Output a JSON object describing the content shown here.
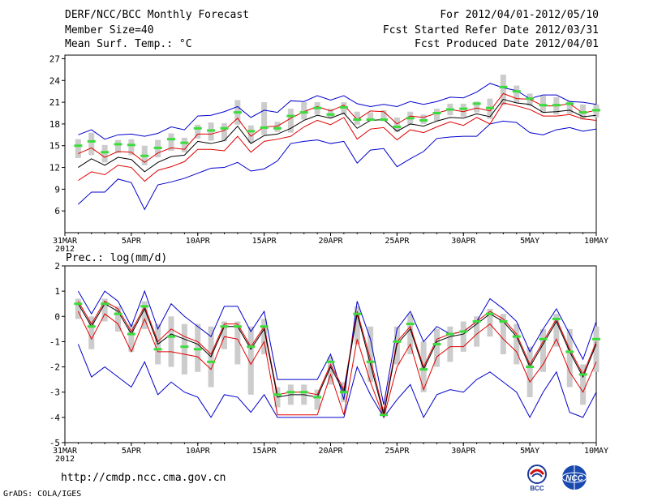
{
  "header": {
    "title": "DERF/NCC/BCC Monthly Forecast",
    "member_size": "Member Size=40",
    "variable": "Mean Surf. Temp.: °C",
    "period": "For 2012/04/01-2012/05/10",
    "fcst_started": "Fcst Started Refer Date 2012/03/31",
    "fcst_produced": "Fcst Produced Date 2012/04/01"
  },
  "footer": {
    "url": "http://cmdp.ncc.cma.gov.cn",
    "grads": "GrADS: COLA/IGES",
    "logo_bcc": "BCC",
    "logo_ncc": "NCC"
  },
  "colors": {
    "envelope": "#0000cc",
    "spread": "#e00000",
    "mean": "#000000",
    "observed": "#3cdc3c",
    "box": "#cccccc"
  },
  "chart_data": [
    {
      "type": "line",
      "title": "Mean Surf. Temp.: °C",
      "x_tick_labels": [
        "31MAR",
        "5APR",
        "10APR",
        "15APR",
        "20APR",
        "25APR",
        "30APR",
        "5MAY",
        "10MAY"
      ],
      "x_tick_days": [
        0,
        5,
        10,
        15,
        20,
        25,
        30,
        35,
        40
      ],
      "x_year_label": "2012",
      "ylim": [
        3,
        27.5
      ],
      "y_ticks": [
        6,
        9,
        12,
        15,
        18,
        21,
        24,
        27
      ],
      "days": [
        1,
        2,
        3,
        4,
        5,
        6,
        7,
        8,
        9,
        10,
        11,
        12,
        13,
        14,
        15,
        16,
        17,
        18,
        19,
        20,
        21,
        22,
        23,
        24,
        25,
        26,
        27,
        28,
        29,
        30,
        31,
        32,
        33,
        34,
        35,
        36,
        37,
        38,
        39,
        40
      ],
      "series": [
        {
          "name": "max",
          "values": [
            16.5,
            17.2,
            15.9,
            16.5,
            16.6,
            16.3,
            16.7,
            17.6,
            17.2,
            19.1,
            19.2,
            19.7,
            20.4,
            18.9,
            19.9,
            19.6,
            21.2,
            21.1,
            21.9,
            21.3,
            21.9,
            20.8,
            20.4,
            20.7,
            20.4,
            21.1,
            20.7,
            21.1,
            21.7,
            21.6,
            22.4,
            23.6,
            23.0,
            22.6,
            21.5,
            22.0,
            22.0,
            21.1,
            21.0,
            20.7
          ]
        },
        {
          "name": "upper",
          "values": [
            13.9,
            14.7,
            13.4,
            14.2,
            14.1,
            12.7,
            14.0,
            14.7,
            14.5,
            16.6,
            16.6,
            17.1,
            18.8,
            16.3,
            17.6,
            17.7,
            18.8,
            19.7,
            20.4,
            19.8,
            20.6,
            18.6,
            19.8,
            19.7,
            18.0,
            19.1,
            18.9,
            19.5,
            20.0,
            19.7,
            20.2,
            19.8,
            22.2,
            21.5,
            21.4,
            20.5,
            20.5,
            20.8,
            19.5,
            19.9
          ]
        },
        {
          "name": "mean",
          "values": [
            12.0,
            13.2,
            12.3,
            13.4,
            13.1,
            11.4,
            12.7,
            13.5,
            13.7,
            15.6,
            15.3,
            15.7,
            17.7,
            15.3,
            16.4,
            16.6,
            17.4,
            18.5,
            19.2,
            18.8,
            19.5,
            17.4,
            18.5,
            18.6,
            17.0,
            18.0,
            17.7,
            18.4,
            18.9,
            18.8,
            19.4,
            19.0,
            21.4,
            20.9,
            20.7,
            19.6,
            19.7,
            19.9,
            19.0,
            19.2
          ]
        },
        {
          "name": "lower",
          "values": [
            10.2,
            11.4,
            11.0,
            12.3,
            12.0,
            10.1,
            11.6,
            12.1,
            12.8,
            14.5,
            14.5,
            14.3,
            16.3,
            14.1,
            15.6,
            15.9,
            16.3,
            17.6,
            18.5,
            17.9,
            18.9,
            15.9,
            17.3,
            17.5,
            15.8,
            17.2,
            16.8,
            17.6,
            18.3,
            17.8,
            18.9,
            18.0,
            20.9,
            20.5,
            20.0,
            19.1,
            19.1,
            19.3,
            18.7,
            18.5
          ]
        },
        {
          "name": "min",
          "values": [
            6.9,
            8.6,
            8.6,
            10.4,
            9.9,
            6.2,
            9.6,
            10.0,
            10.5,
            11.2,
            11.9,
            12.0,
            12.7,
            11.5,
            11.8,
            12.9,
            15.3,
            15.6,
            15.8,
            15.3,
            15.6,
            12.6,
            14.4,
            14.6,
            12.1,
            13.2,
            14.2,
            16.0,
            16.2,
            16.3,
            16.3,
            18.0,
            18.4,
            18.2,
            16.8,
            16.5,
            17.2,
            17.5,
            17.0,
            17.3
          ]
        },
        {
          "name": "observed",
          "values": [
            15.0,
            15.6,
            14.1,
            15.2,
            15.1,
            13.6,
            14.7,
            15.9,
            15.4,
            17.4,
            17.1,
            17.4,
            19.6,
            17.0,
            17.5,
            17.4,
            19.1,
            19.6,
            20.2,
            19.3,
            20.3,
            18.6,
            18.6,
            18.6,
            17.6,
            18.8,
            18.5,
            19.5,
            20.0,
            20.1,
            20.8,
            20.2,
            23.1,
            22.5,
            21.5,
            20.6,
            20.6,
            20.8,
            19.6,
            19.9
          ]
        },
        {
          "name": "box_top",
          "values": [
            15.9,
            16.8,
            15.1,
            15.8,
            15.9,
            15.0,
            15.8,
            16.7,
            16.1,
            17.9,
            18.2,
            18.1,
            21.3,
            17.8,
            21.0,
            18.3,
            20.1,
            21.0,
            21.0,
            20.1,
            21.0,
            19.7,
            19.6,
            19.9,
            18.9,
            19.7,
            19.3,
            20.1,
            20.8,
            20.8,
            21.1,
            21.5,
            24.8,
            23.3,
            22.2,
            21.9,
            21.7,
            21.2,
            20.7,
            20.7
          ]
        },
        {
          "name": "box_bottom",
          "values": [
            13.3,
            13.7,
            12.7,
            14.0,
            13.7,
            12.3,
            13.4,
            14.3,
            14.1,
            16.0,
            15.7,
            15.6,
            17.9,
            15.4,
            16.5,
            16.9,
            16.8,
            18.6,
            19.3,
            18.8,
            19.3,
            17.9,
            18.4,
            18.4,
            16.9,
            17.9,
            18.0,
            18.4,
            19.2,
            19.0,
            19.6,
            18.7,
            20.6,
            20.9,
            20.5,
            19.5,
            19.3,
            19.4,
            18.6,
            18.9
          ]
        }
      ]
    },
    {
      "type": "line",
      "title": "Prec.: log(mm/d)",
      "x_tick_labels": [
        "31MAR",
        "5APR",
        "10APR",
        "15APR",
        "20APR",
        "25APR",
        "30APR",
        "5MAY",
        "10MAY"
      ],
      "x_tick_days": [
        0,
        5,
        10,
        15,
        20,
        25,
        30,
        35,
        40
      ],
      "x_year_label": "2012",
      "ylim": [
        -5,
        2
      ],
      "y_ticks": [
        -5,
        -4,
        -3,
        -2,
        -1,
        0,
        1,
        2
      ],
      "days": [
        1,
        2,
        3,
        4,
        5,
        6,
        7,
        8,
        9,
        10,
        11,
        12,
        13,
        14,
        15,
        16,
        17,
        18,
        19,
        20,
        21,
        22,
        23,
        24,
        25,
        26,
        27,
        28,
        29,
        30,
        31,
        32,
        33,
        34,
        35,
        36,
        37,
        38,
        39,
        40
      ],
      "series": [
        {
          "name": "max",
          "values": [
            1.0,
            0.1,
            1.0,
            0.6,
            -0.4,
            1.0,
            -0.5,
            0.5,
            0.0,
            -0.4,
            -0.8,
            0.4,
            0.4,
            -0.6,
            0.2,
            -2.5,
            -2.5,
            -2.5,
            -2.5,
            -1.5,
            -3.3,
            0.6,
            -0.9,
            -3.5,
            -0.5,
            0.2,
            -1.0,
            -0.4,
            -0.7,
            -0.6,
            -0.2,
            0.7,
            0.3,
            -0.2,
            -1.4,
            -0.5,
            0.3,
            -0.7,
            -1.7,
            -0.2
          ]
        },
        {
          "name": "upper",
          "values": [
            0.6,
            -0.3,
            0.6,
            0.3,
            -0.6,
            0.4,
            -1.0,
            -0.5,
            -0.8,
            -1.0,
            -1.5,
            -0.3,
            -0.3,
            -1.2,
            -0.4,
            -3.1,
            -3.0,
            -3.0,
            -3.1,
            -1.9,
            -2.9,
            0.2,
            -1.7,
            -3.8,
            -1.0,
            -0.4,
            -2.0,
            -0.9,
            -0.7,
            -0.6,
            -0.2,
            0.2,
            -0.1,
            -0.7,
            -1.9,
            -1.0,
            -0.1,
            -1.3,
            -2.3,
            -1.0
          ]
        },
        {
          "name": "mean",
          "values": [
            0.5,
            -0.4,
            0.5,
            0.2,
            -0.7,
            0.3,
            -1.1,
            -0.7,
            -0.9,
            -1.1,
            -1.6,
            -0.4,
            -0.4,
            -1.3,
            -0.5,
            -3.2,
            -3.1,
            -3.1,
            -3.2,
            -2.0,
            -3.0,
            0.1,
            -1.9,
            -3.9,
            -1.1,
            -0.5,
            -2.1,
            -1.0,
            -0.8,
            -0.7,
            -0.3,
            0.1,
            -0.2,
            -0.8,
            -2.0,
            -1.1,
            -0.2,
            -1.4,
            -2.4,
            -1.1
          ]
        },
        {
          "name": "lower",
          "values": [
            0.2,
            -0.9,
            0.1,
            -0.3,
            -1.4,
            -0.1,
            -1.4,
            -1.4,
            -1.5,
            -1.6,
            -2.1,
            -0.8,
            -0.9,
            -1.9,
            -1.0,
            -3.9,
            -3.9,
            -3.9,
            -3.9,
            -2.3,
            -3.9,
            -0.9,
            -2.6,
            -4.0,
            -2.0,
            -1.1,
            -2.9,
            -1.6,
            -1.2,
            -1.2,
            -0.7,
            -0.3,
            -0.9,
            -1.4,
            -2.6,
            -1.9,
            -0.9,
            -2.2,
            -3.0,
            -1.8
          ]
        },
        {
          "name": "min",
          "values": [
            -1.1,
            -2.4,
            -2.0,
            -2.4,
            -2.8,
            -1.8,
            -3.1,
            -2.6,
            -3.0,
            -3.2,
            -4.0,
            -3.1,
            -3.2,
            -3.8,
            -3.1,
            -4.0,
            -4.0,
            -4.0,
            -4.0,
            -4.0,
            -4.0,
            -2.0,
            -3.1,
            -4.0,
            -3.3,
            -2.7,
            -4.0,
            -3.1,
            -2.9,
            -3.0,
            -2.5,
            -2.2,
            -2.6,
            -3.0,
            -4.0,
            -3.0,
            -2.2,
            -3.8,
            -4.0,
            -3.0
          ]
        },
        {
          "name": "observed",
          "values": [
            0.5,
            -0.4,
            0.5,
            0.1,
            -0.7,
            0.4,
            -1.3,
            -0.8,
            -1.2,
            -1.3,
            -1.8,
            -0.4,
            -0.4,
            -1.2,
            -0.4,
            -3.1,
            -3.0,
            -3.0,
            -3.2,
            -1.8,
            -3.0,
            0.1,
            -1.8,
            -3.9,
            -1.0,
            -0.3,
            -2.1,
            -1.1,
            -0.7,
            -0.6,
            -0.2,
            0.1,
            -0.2,
            -0.8,
            -2.0,
            -0.9,
            -0.1,
            -1.4,
            -2.3,
            -0.9
          ]
        },
        {
          "name": "box_top",
          "values": [
            0.7,
            0.0,
            0.7,
            0.4,
            -0.3,
            0.6,
            -0.3,
            0.0,
            -0.3,
            -0.3,
            -0.4,
            -0.2,
            -0.2,
            -0.4,
            -0.1,
            -2.8,
            -2.7,
            -2.7,
            -2.9,
            -1.6,
            -2.6,
            0.4,
            -0.4,
            -3.6,
            -0.4,
            0.1,
            -1.0,
            -0.5,
            -0.4,
            -0.2,
            0.0,
            0.3,
            0.1,
            -0.3,
            -1.2,
            -0.5,
            0.1,
            -0.5,
            -1.9,
            -0.4
          ]
        },
        {
          "name": "box_bottom",
          "values": [
            -0.1,
            -1.3,
            -0.2,
            -0.6,
            -1.4,
            -0.5,
            -1.9,
            -2.0,
            -2.3,
            -2.2,
            -2.8,
            -1.3,
            -1.9,
            -3.1,
            -1.5,
            -3.6,
            -3.5,
            -3.5,
            -3.7,
            -2.7,
            -3.4,
            -1.1,
            -2.6,
            -3.9,
            -1.9,
            -1.5,
            -3.0,
            -2.0,
            -1.8,
            -1.4,
            -1.2,
            -0.8,
            -1.5,
            -1.9,
            -3.2,
            -2.2,
            -1.2,
            -2.8,
            -3.5,
            -2.2
          ]
        }
      ]
    }
  ]
}
